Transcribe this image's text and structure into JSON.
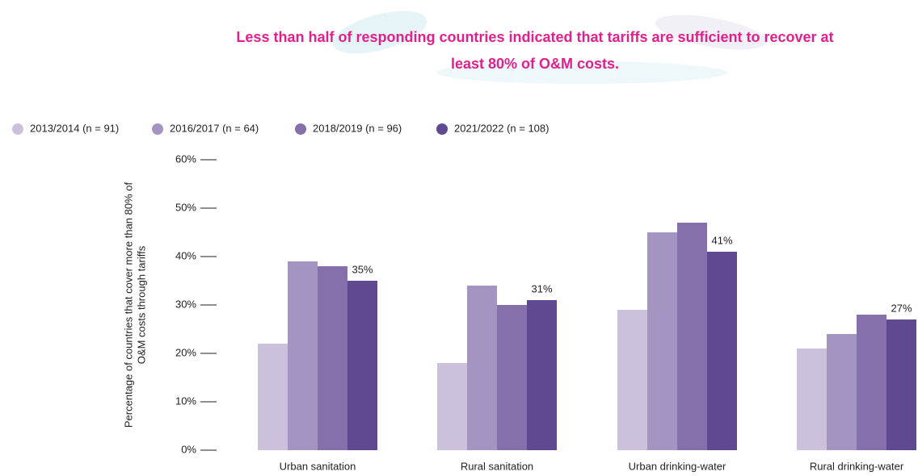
{
  "chart_data": {
    "type": "bar",
    "title": [
      "Less than half of responding countries indicated that tariffs are sufficient to recover at",
      "least 80% of O&M costs."
    ],
    "y_label": [
      "Percentage of countries that cover more than 80% of",
      "O&M costs through tariffs"
    ],
    "categories": [
      "Urban sanitation",
      "Rural sanitation",
      "Urban drinking-water",
      "Rural drinking-water"
    ],
    "series": [
      {
        "name": "2013/2014 (n = 91)",
        "color": "#cbc1dc",
        "values": [
          22,
          18,
          29,
          21
        ]
      },
      {
        "name": "2016/2017 (n = 64)",
        "color": "#a394c2",
        "values": [
          39,
          34,
          45,
          24
        ]
      },
      {
        "name": "2018/2019 (n = 96)",
        "color": "#8670ac",
        "values": [
          38,
          30,
          47,
          28
        ]
      },
      {
        "name": "2021/2022 (n = 108)",
        "color": "#5f4a91",
        "values": [
          35,
          31,
          41,
          27
        ],
        "value_labels": [
          "35%",
          "31%",
          "41%",
          "27%"
        ]
      }
    ],
    "ylim": [
      0,
      60
    ],
    "yticks": [
      {
        "value": 0,
        "label": "0%"
      },
      {
        "value": 10,
        "label": "10%"
      },
      {
        "value": 20,
        "label": "20%"
      },
      {
        "value": 30,
        "label": "30%"
      },
      {
        "value": 40,
        "label": "40%"
      },
      {
        "value": 50,
        "label": "50%"
      },
      {
        "value": 60,
        "label": "60%"
      }
    ],
    "grid": false
  }
}
